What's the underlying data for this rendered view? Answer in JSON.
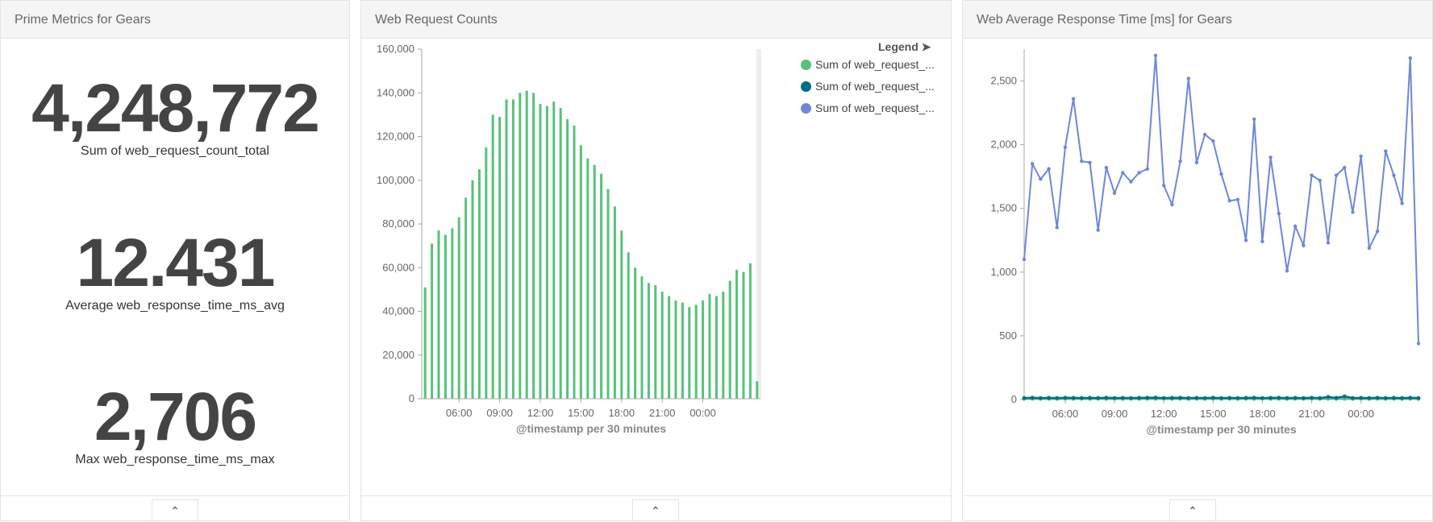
{
  "panels": {
    "prime": {
      "title": "Prime Metrics for Gears",
      "metrics": [
        {
          "value": "4,248,772",
          "label": "Sum of web_request_count_total"
        },
        {
          "value": "12.431",
          "label": "Average web_response_time_ms_avg"
        },
        {
          "value": "2,706",
          "label": "Max web_response_time_ms_max"
        }
      ]
    },
    "requests": {
      "title": "Web Request Counts",
      "legend_title": "Legend",
      "legend_icon": "arrow-circle-right-icon",
      "legend": [
        {
          "label": "Sum of web_request_...",
          "color": "#57c17b"
        },
        {
          "label": "Sum of web_request_...",
          "color": "#006e8a"
        },
        {
          "label": "Sum of web_request_...",
          "color": "#6f87d8"
        }
      ]
    },
    "response": {
      "title": "Web Average Response Time [ms] for Gears"
    },
    "collapse_icon": "chevron-up-icon"
  },
  "chart_data": [
    {
      "type": "bar",
      "xlabel": "@timestamp per 30 minutes",
      "ylim": [
        0,
        160000
      ],
      "yticks": [
        0,
        20000,
        40000,
        60000,
        80000,
        100000,
        120000,
        140000,
        160000
      ],
      "ytick_labels": [
        "0",
        "20,000",
        "40,000",
        "60,000",
        "80,000",
        "100,000",
        "120,000",
        "140,000",
        "160,000"
      ],
      "xtick_labels": [
        "06:00",
        "09:00",
        "12:00",
        "15:00",
        "18:00",
        "21:00",
        "00:00"
      ],
      "xtick_index": [
        5,
        11,
        17,
        23,
        29,
        35,
        41
      ],
      "grid": false,
      "legend_position": "right",
      "series": [
        {
          "name": "Sum of web_request_...",
          "color": "#57c17b",
          "values": [
            51000,
            71000,
            77000,
            75000,
            78000,
            83000,
            92000,
            100000,
            105000,
            115000,
            130000,
            129000,
            137000,
            137000,
            140000,
            141000,
            140000,
            135000,
            134000,
            136000,
            133000,
            128000,
            125000,
            116000,
            110000,
            107000,
            103000,
            96000,
            88000,
            77000,
            67000,
            60000,
            56000,
            53000,
            52000,
            49000,
            47000,
            45000,
            44000,
            42000,
            43000,
            45000,
            48000,
            47000,
            49000,
            54000,
            59000,
            58000,
            62000,
            8000
          ]
        }
      ]
    },
    {
      "type": "line",
      "xlabel": "@timestamp per 30 minutes",
      "ylim": [
        0,
        2750
      ],
      "yticks": [
        0,
        500,
        1000,
        1500,
        2000,
        2500
      ],
      "ytick_labels": [
        "0",
        "500",
        "1,000",
        "1,500",
        "2,000",
        "2,500"
      ],
      "xtick_labels": [
        "06:00",
        "09:00",
        "12:00",
        "15:00",
        "18:00",
        "21:00",
        "00:00"
      ],
      "xtick_index": [
        5,
        11,
        17,
        23,
        29,
        35,
        41
      ],
      "grid": false,
      "series": [
        {
          "name": "Sum of web_request_...",
          "color": "#6f87d8",
          "values": [
            1100,
            1850,
            1730,
            1810,
            1350,
            1980,
            2360,
            1870,
            1860,
            1330,
            1820,
            1620,
            1780,
            1710,
            1780,
            1810,
            2700,
            1680,
            1530,
            1870,
            2520,
            1860,
            2080,
            2030,
            1770,
            1560,
            1570,
            1250,
            2200,
            1240,
            1900,
            1460,
            1010,
            1360,
            1210,
            1760,
            1720,
            1230,
            1760,
            1820,
            1470,
            1910,
            1190,
            1320,
            1950,
            1760,
            1540,
            2680,
            440
          ]
        },
        {
          "name": "Sum of web_request_...",
          "color": "#006e8a",
          "values": [
            12,
            14,
            12,
            13,
            12,
            14,
            13,
            12,
            13,
            12,
            14,
            12,
            13,
            12,
            13,
            14,
            15,
            12,
            13,
            14,
            12,
            13,
            12,
            14,
            12,
            13,
            12,
            13,
            14,
            12,
            13,
            14,
            12,
            13,
            12,
            14,
            12,
            20,
            13,
            25,
            12,
            13,
            12,
            14,
            12,
            13,
            12,
            14,
            12
          ]
        },
        {
          "name": "Sum of web_request_...",
          "color": "#57c17b",
          "values": [
            5,
            6,
            5,
            6,
            5,
            6,
            5,
            6,
            5,
            6,
            5,
            6,
            5,
            6,
            5,
            6,
            5,
            6,
            5,
            6,
            5,
            6,
            5,
            6,
            5,
            6,
            5,
            6,
            5,
            6,
            5,
            6,
            5,
            6,
            5,
            6,
            5,
            6,
            5,
            6,
            5,
            6,
            5,
            6,
            5,
            6,
            5,
            6,
            5
          ]
        }
      ]
    }
  ]
}
